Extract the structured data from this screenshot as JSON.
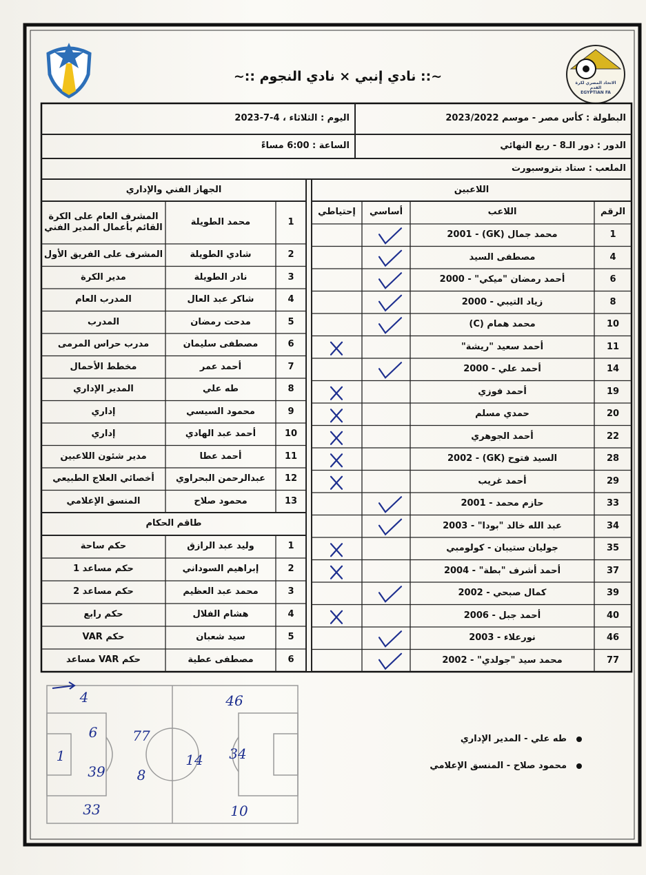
{
  "header": {
    "title": "~:: نادي إنبي × نادي النجوم ::~",
    "fa_logo": {
      "line1": "الاتحاد المصري لكرة القدم",
      "line2": "EGYPTIAN FA"
    }
  },
  "match_info": {
    "competition": "البطولة : كأس مصر - موسم 2023/2022",
    "day": "اليوم : الثلاثاء ، 4-7-2023",
    "round": "الدور : دور الـ8 - ربع النهائي",
    "time": "الساعة : 6:00 مساءً",
    "venue": "الملعب : ستاد بتروسبورت"
  },
  "players": {
    "heading": "اللاعبين",
    "columns": {
      "number": "الرقم",
      "name": "اللاعب",
      "starter": "أساسي",
      "sub": "إحتياطي"
    },
    "rows": [
      {
        "number": 1,
        "name": "محمد جمال (GK) - 2001",
        "starter": true
      },
      {
        "number": 4,
        "name": "مصطفى السيد",
        "starter": true
      },
      {
        "number": 6,
        "name": "أحمد رمضان \"ميكي\" - 2000",
        "starter": true
      },
      {
        "number": 8,
        "name": "زياد التيبي - 2000",
        "starter": true
      },
      {
        "number": 10,
        "name": "محمد همام (C)",
        "starter": true
      },
      {
        "number": 11,
        "name": "أحمد سعيد \"ريشة\"",
        "starter": false
      },
      {
        "number": 14,
        "name": "أحمد علي - 2000",
        "starter": true
      },
      {
        "number": 19,
        "name": "أحمد فوزي",
        "starter": false
      },
      {
        "number": 20,
        "name": "حمدي مسلم",
        "starter": false
      },
      {
        "number": 22,
        "name": "أحمد الجوهري",
        "starter": false
      },
      {
        "number": 28,
        "name": "السيد فتوح (GK) - 2002",
        "starter": false
      },
      {
        "number": 29,
        "name": "أحمد غريب",
        "starter": false
      },
      {
        "number": 33,
        "name": "حازم محمد - 2001",
        "starter": true
      },
      {
        "number": 34,
        "name": "عبد الله خالد \"بودا\" - 2003",
        "starter": true
      },
      {
        "number": 35,
        "name": "جوليان ستيبان - كولومبي",
        "starter": false
      },
      {
        "number": 37,
        "name": "أحمد أشرف \"بطة\" - 2004",
        "starter": false
      },
      {
        "number": 39,
        "name": "كمال صبحي - 2002",
        "starter": true
      },
      {
        "number": 40,
        "name": "أحمد جبل - 2006",
        "starter": false
      },
      {
        "number": 46,
        "name": "نورعلاء - 2003",
        "starter": true
      },
      {
        "number": 77,
        "name": "محمد سيد \"جولدي\" - 2002",
        "starter": true
      }
    ]
  },
  "staff": {
    "heading": "الجهاز الفني والإداري",
    "rows": [
      {
        "number": 1,
        "name": "محمد الطويلة",
        "role": "المشرف العام على الكرة القائم بأعمال المدير الفني"
      },
      {
        "number": 2,
        "name": "شادي الطويلة",
        "role": "المشرف على الفريق الأول"
      },
      {
        "number": 3,
        "name": "نادر الطويلة",
        "role": "مدير الكرة"
      },
      {
        "number": 4,
        "name": "شاكر عبد العال",
        "role": "المدرب العام"
      },
      {
        "number": 5,
        "name": "مدحت رمضان",
        "role": "المدرب"
      },
      {
        "number": 6,
        "name": "مصطفى سليمان",
        "role": "مدرب حراس المرمى"
      },
      {
        "number": 7,
        "name": "أحمد عمر",
        "role": "مخطط الأحمال"
      },
      {
        "number": 8,
        "name": "طه علي",
        "role": "المدير الإداري"
      },
      {
        "number": 9,
        "name": "محمود السيسي",
        "role": "إداري"
      },
      {
        "number": 10,
        "name": "أحمد عبد الهادي",
        "role": "إداري"
      },
      {
        "number": 11,
        "name": "أحمد عطا",
        "role": "مدير شئون اللاعبين"
      },
      {
        "number": 12,
        "name": "عبدالرحمن البحراوي",
        "role": "أخصائي العلاج الطبيعي"
      },
      {
        "number": 13,
        "name": "محمود صلاح",
        "role": "المنسق الإعلامي"
      }
    ]
  },
  "referees": {
    "heading": "طاقم الحكام",
    "rows": [
      {
        "number": 1,
        "name": "وليد عبد الرازق",
        "role": "حكم ساحة"
      },
      {
        "number": 2,
        "name": "إبراهيم السوداني",
        "role": "حكم مساعد 1"
      },
      {
        "number": 3,
        "name": "محمد عبد العظيم",
        "role": "حكم مساعد 2"
      },
      {
        "number": 4,
        "name": "هشام الفلال",
        "role": "حكم رابع"
      },
      {
        "number": 5,
        "name": "سيد شعبان",
        "role": "حكم VAR"
      },
      {
        "number": 6,
        "name": "مصطفى عطية",
        "role": "حكم VAR مساعد"
      }
    ]
  },
  "formation": [
    "4",
    "46",
    "6",
    "77",
    "1",
    "14",
    "34",
    "39",
    "8",
    "33",
    "10"
  ],
  "notes": [
    "طه علي - المدير الإداري",
    "محمود صلاح - المنسق الإعلامي"
  ]
}
